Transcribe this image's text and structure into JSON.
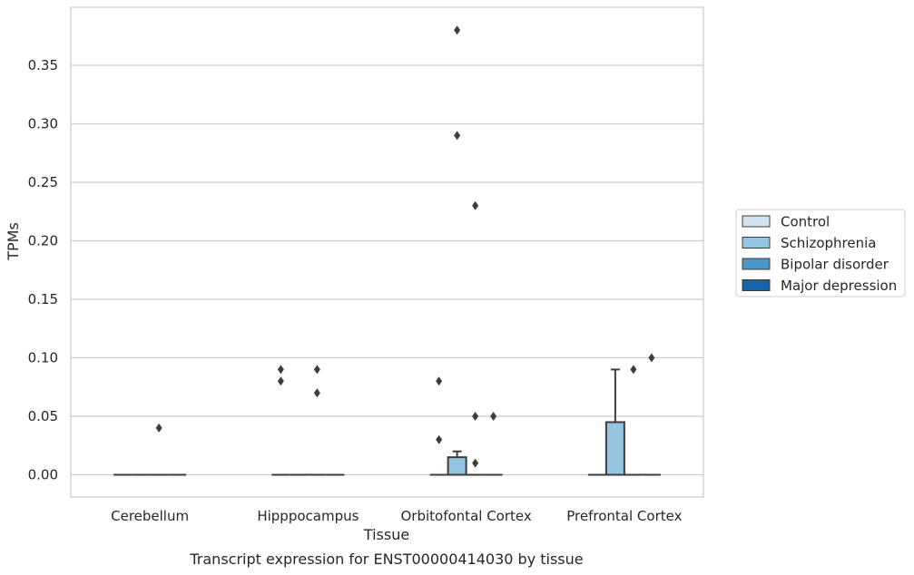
{
  "chart_data": {
    "type": "box",
    "xlabel": "Tissue",
    "ylabel": "TPMs",
    "caption": "Transcript expression for ENST00000414030 by tissue",
    "categories": [
      "Cerebellum",
      "Hipppocampus",
      "Orbitofontal Cortex",
      "Prefrontal Cortex"
    ],
    "ylim": [
      -0.018,
      0.398
    ],
    "yticks": [
      0.0,
      0.05,
      0.1,
      0.15,
      0.2,
      0.25,
      0.3,
      0.35
    ],
    "ytick_labels": [
      "0.00",
      "0.05",
      "0.10",
      "0.15",
      "0.20",
      "0.25",
      "0.30",
      "0.35"
    ],
    "grid": true,
    "legend_position": "right",
    "series": [
      {
        "name": "Control",
        "color": "#d0e1f2"
      },
      {
        "name": "Schizophrenia",
        "color": "#94c4df"
      },
      {
        "name": "Bipolar disorder",
        "color": "#4a98c9"
      },
      {
        "name": "Major depression",
        "color": "#1764ab"
      }
    ],
    "boxes": [
      {
        "category": 0,
        "series": 0,
        "q1": 0,
        "median": 0,
        "q3": 0,
        "whisker_low": 0,
        "whisker_high": 0,
        "outliers": []
      },
      {
        "category": 0,
        "series": 1,
        "q1": 0,
        "median": 0,
        "q3": 0,
        "whisker_low": 0,
        "whisker_high": 0,
        "outliers": []
      },
      {
        "category": 0,
        "series": 2,
        "q1": 0,
        "median": 0,
        "q3": 0,
        "whisker_low": 0,
        "whisker_high": 0,
        "outliers": [
          0.04
        ]
      },
      {
        "category": 0,
        "series": 3,
        "q1": 0,
        "median": 0,
        "q3": 0,
        "whisker_low": 0,
        "whisker_high": 0,
        "outliers": []
      },
      {
        "category": 1,
        "series": 0,
        "q1": 0,
        "median": 0,
        "q3": 0,
        "whisker_low": 0,
        "whisker_high": 0,
        "outliers": [
          0.09,
          0.08
        ]
      },
      {
        "category": 1,
        "series": 1,
        "q1": 0,
        "median": 0,
        "q3": 0,
        "whisker_low": 0,
        "whisker_high": 0,
        "outliers": []
      },
      {
        "category": 1,
        "series": 2,
        "q1": 0,
        "median": 0,
        "q3": 0,
        "whisker_low": 0,
        "whisker_high": 0,
        "outliers": [
          0.09,
          0.07
        ]
      },
      {
        "category": 1,
        "series": 3,
        "q1": 0,
        "median": 0,
        "q3": 0,
        "whisker_low": 0,
        "whisker_high": 0,
        "outliers": []
      },
      {
        "category": 2,
        "series": 0,
        "q1": 0,
        "median": 0,
        "q3": 0,
        "whisker_low": 0,
        "whisker_high": 0,
        "outliers": [
          0.08,
          0.03
        ]
      },
      {
        "category": 2,
        "series": 1,
        "q1": 0,
        "median": 0,
        "q3": 0.015,
        "whisker_low": 0,
        "whisker_high": 0.02,
        "outliers": [
          0.38,
          0.29
        ]
      },
      {
        "category": 2,
        "series": 2,
        "q1": 0,
        "median": 0,
        "q3": 0,
        "whisker_low": 0,
        "whisker_high": 0,
        "outliers": [
          0.23,
          0.05,
          0.01
        ]
      },
      {
        "category": 2,
        "series": 3,
        "q1": 0,
        "median": 0,
        "q3": 0,
        "whisker_low": 0,
        "whisker_high": 0,
        "outliers": [
          0.05
        ]
      },
      {
        "category": 3,
        "series": 0,
        "q1": 0,
        "median": 0,
        "q3": 0,
        "whisker_low": 0,
        "whisker_high": 0,
        "outliers": []
      },
      {
        "category": 3,
        "series": 1,
        "q1": 0,
        "median": 0,
        "q3": 0.045,
        "whisker_low": 0,
        "whisker_high": 0.09,
        "outliers": []
      },
      {
        "category": 3,
        "series": 2,
        "q1": 0,
        "median": 0,
        "q3": 0,
        "whisker_low": 0,
        "whisker_high": 0,
        "outliers": [
          0.09
        ]
      },
      {
        "category": 3,
        "series": 3,
        "q1": 0,
        "median": 0,
        "q3": 0,
        "whisker_low": 0,
        "whisker_high": 0,
        "outliers": [
          0.1
        ]
      }
    ]
  }
}
